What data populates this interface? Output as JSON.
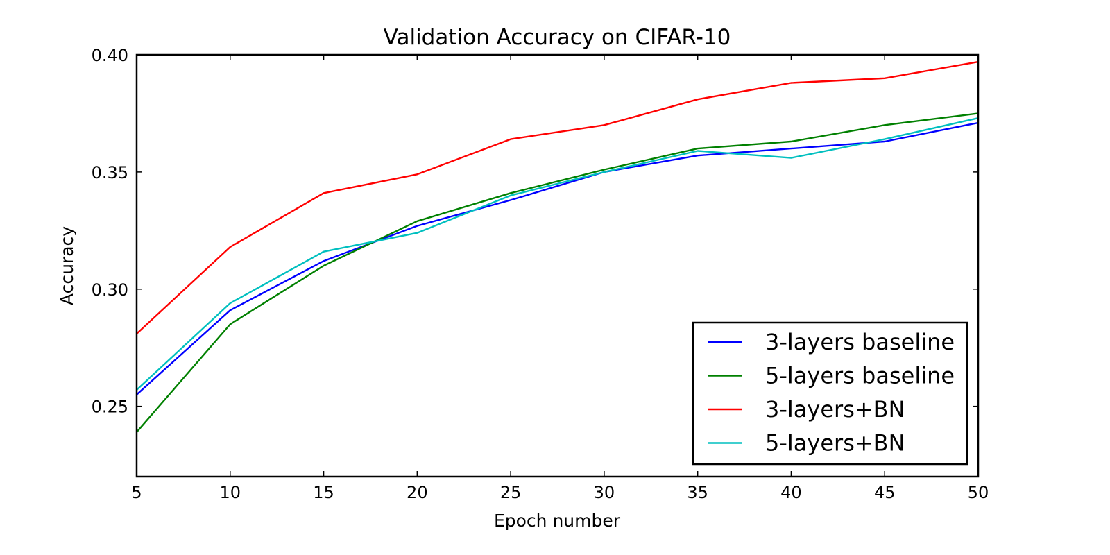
{
  "chart_data": {
    "type": "line",
    "title": "Validation Accuracy on CIFAR-10",
    "xlabel": "Epoch number",
    "ylabel": "Accuracy",
    "xlim": [
      5,
      50
    ],
    "ylim": [
      0.22,
      0.4
    ],
    "xticks": [
      "5",
      "10",
      "15",
      "20",
      "25",
      "30",
      "35",
      "40",
      "45",
      "50"
    ],
    "yticks": [
      "0.25",
      "0.30",
      "0.35",
      "0.40"
    ],
    "x": [
      5,
      10,
      15,
      20,
      25,
      30,
      35,
      40,
      45,
      50
    ],
    "grid": false,
    "legend_position": "lower-right",
    "series": [
      {
        "name": "3-layers baseline",
        "color": "#0000ff",
        "values": [
          0.255,
          0.291,
          0.312,
          0.327,
          0.338,
          0.35,
          0.357,
          0.36,
          0.363,
          0.371
        ]
      },
      {
        "name": "5-layers baseline",
        "color": "#008000",
        "values": [
          0.239,
          0.285,
          0.31,
          0.329,
          0.341,
          0.351,
          0.36,
          0.363,
          0.37,
          0.375
        ]
      },
      {
        "name": "3-layers+BN",
        "color": "#ff0000",
        "values": [
          0.281,
          0.318,
          0.341,
          0.349,
          0.364,
          0.37,
          0.381,
          0.388,
          0.39,
          0.397
        ]
      },
      {
        "name": "5-layers+BN",
        "color": "#00bfbf",
        "values": [
          0.257,
          0.294,
          0.316,
          0.324,
          0.34,
          0.35,
          0.359,
          0.356,
          0.364,
          0.373
        ]
      }
    ]
  }
}
